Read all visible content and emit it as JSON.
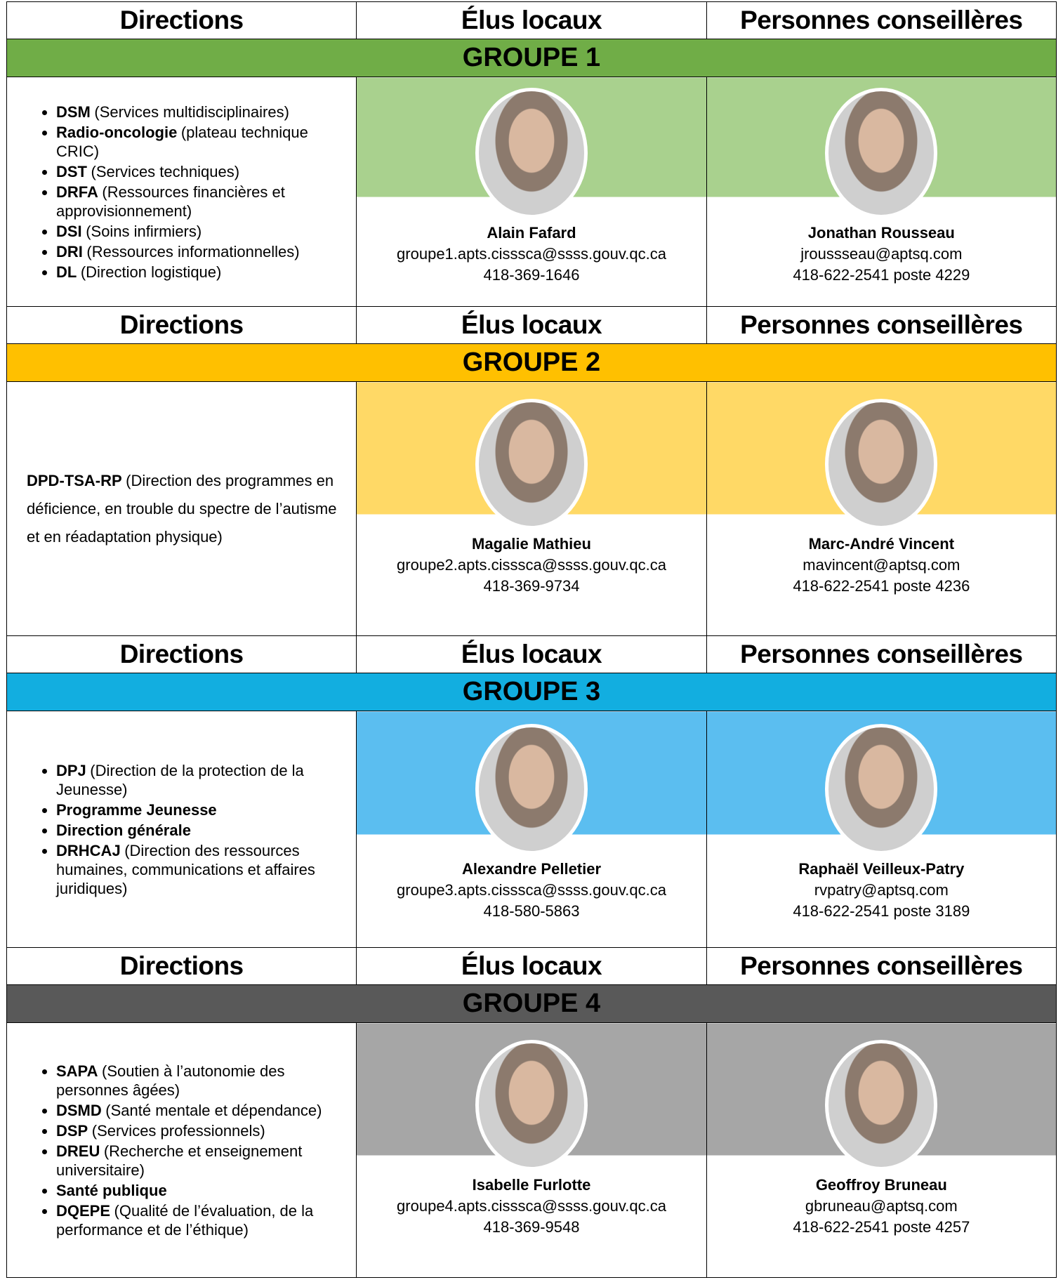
{
  "headers": [
    "Directions",
    "Élus locaux",
    "Personnes conseillères"
  ],
  "groups": [
    {
      "label": "GROUPE 1",
      "band_color": "#70ad47",
      "light_color": "#a9d18e",
      "bulleted": true,
      "directions": [
        {
          "bold": "DSM",
          "text": "(Services multidisciplinaires)"
        },
        {
          "bold": "Radio-oncologie",
          "text": "(plateau technique CRIC)"
        },
        {
          "bold": "DST",
          "text": "(Services techniques)"
        },
        {
          "bold": "DRFA",
          "text": "(Ressources financières et approvisionnement)"
        },
        {
          "bold": "DSI",
          "text": "(Soins infirmiers)"
        },
        {
          "bold": "DRI",
          "text": "(Ressources informationnelles)"
        },
        {
          "bold": "DL",
          "text": "(Direction logistique)"
        }
      ],
      "elu": {
        "name": "Alain Fafard",
        "email": "groupe1.apts.cisssca@ssss.gouv.qc.ca",
        "phone": "418-369-1646"
      },
      "conseiller": {
        "name": "Jonathan Rousseau",
        "email": "jroussseau@aptsq.com",
        "phone": "418-622-2541 poste 4229"
      }
    },
    {
      "label": "GROUPE 2",
      "band_color": "#ffc000",
      "light_color": "#ffd966",
      "bulleted": false,
      "directions": [
        {
          "bold": "DPD-TSA-RP",
          "text": "(Direction des programmes en déficience, en trouble du spectre de l’autisme et en réadaptation physique)"
        }
      ],
      "elu": {
        "name": "Magalie Mathieu",
        "email": "groupe2.apts.cisssca@ssss.gouv.qc.ca",
        "phone": "418-369-9734"
      },
      "conseiller": {
        "name": "Marc-André Vincent",
        "email": "mavincent@aptsq.com",
        "phone": "418-622-2541 poste 4236"
      }
    },
    {
      "label": "GROUPE 3",
      "band_color": "#12aee0",
      "light_color": "#5bbef0",
      "bulleted": true,
      "directions": [
        {
          "bold": "DPJ",
          "text": "(Direction de la protection de la Jeunesse)"
        },
        {
          "bold": "Programme Jeunesse"
        },
        {
          "bold": "Direction générale"
        },
        {
          "bold": "DRHCAJ",
          "text": "(Direction des ressources humaines, communications et affaires juridiques)"
        }
      ],
      "elu": {
        "name": "Alexandre Pelletier",
        "email": "groupe3.apts.cisssca@ssss.gouv.qc.ca",
        "phone": "418-580-5863"
      },
      "conseiller": {
        "name": "Raphaël Veilleux-Patry",
        "email": "rvpatry@aptsq.com",
        "phone": "418-622-2541 poste 3189"
      }
    },
    {
      "label": "GROUPE 4",
      "band_color": "#595959",
      "light_color": "#a6a6a6",
      "bulleted": true,
      "directions": [
        {
          "bold": "SAPA",
          "text": "(Soutien à l’autonomie des personnes âgées)"
        },
        {
          "bold": "DSMD",
          "text": "(Santé mentale et dépendance)"
        },
        {
          "bold": "DSP",
          "text": "(Services professionnels)"
        },
        {
          "bold": "DREU",
          "text": "(Recherche et enseignement universitaire)"
        },
        {
          "bold": "Santé publique"
        },
        {
          "bold": "DQEPE",
          "text": "(Qualité de l’évaluation, de la performance et de l’éthique)"
        }
      ],
      "elu": {
        "name": "Isabelle Furlotte",
        "email": "groupe4.apts.cisssca@ssss.gouv.qc.ca",
        "phone": "418-369-9548"
      },
      "conseiller": {
        "name": "Geoffroy Bruneau",
        "email": "gbruneau@aptsq.com",
        "phone": "418-622-2541 poste 4257"
      }
    }
  ]
}
